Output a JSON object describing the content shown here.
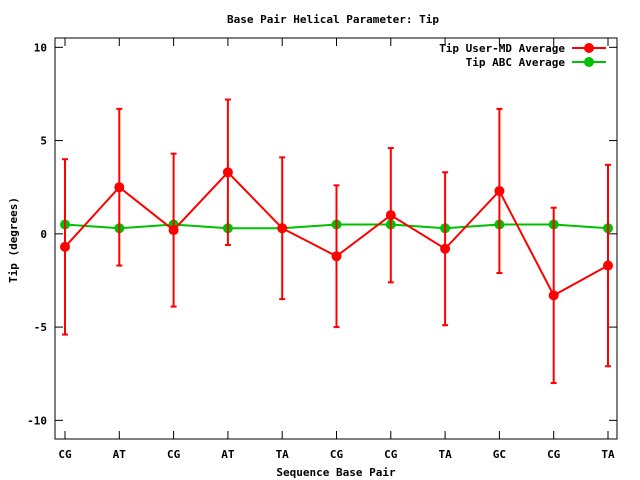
{
  "chart_data": {
    "type": "line",
    "title": "Base Pair Helical Parameter: Tip",
    "xlabel": "Sequence Base Pair",
    "ylabel": "Tip (degrees)",
    "categories": [
      "CG",
      "AT",
      "CG",
      "AT",
      "TA",
      "CG",
      "CG",
      "TA",
      "GC",
      "CG",
      "TA"
    ],
    "ylim": [
      -11,
      10.5
    ],
    "yticks": [
      -10,
      -5,
      0,
      5,
      10
    ],
    "legend_position": "top-right",
    "series": [
      {
        "name": "Tip User-MD Average",
        "color": "#ff0000",
        "values": [
          -0.7,
          2.5,
          0.2,
          3.3,
          0.3,
          -1.2,
          1.0,
          -0.8,
          2.3,
          -3.3,
          -1.7
        ],
        "error": [
          4.7,
          4.2,
          4.1,
          3.9,
          3.8,
          3.8,
          3.6,
          4.1,
          4.4,
          4.7,
          5.4
        ]
      },
      {
        "name": "Tip ABC Average",
        "color": "#00c000",
        "values": [
          0.5,
          0.3,
          0.5,
          0.3,
          0.3,
          0.5,
          0.5,
          0.3,
          0.5,
          0.5,
          0.3
        ]
      }
    ]
  }
}
